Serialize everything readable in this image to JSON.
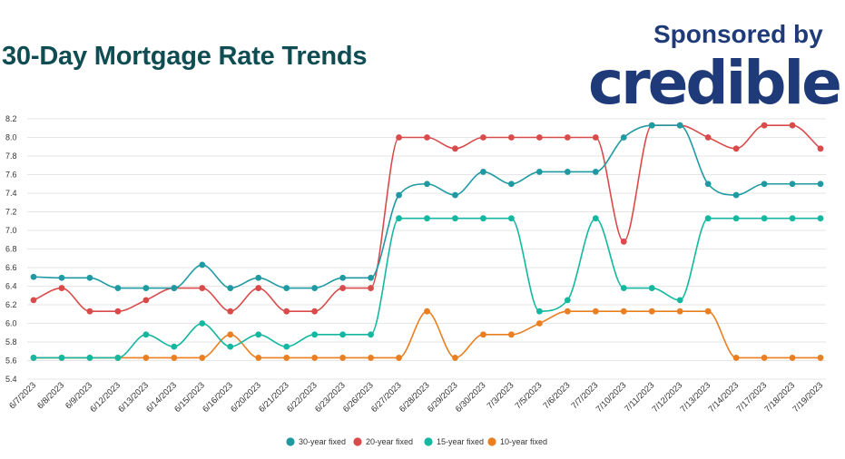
{
  "header": {
    "title": "30-Day Mortgage Rate Trends",
    "sponsor_text": "Sponsored by",
    "sponsor_logo": "credible"
  },
  "colors": {
    "title": "#0f4d52",
    "sponsor": "#1e3a78",
    "grid": "#e6e6e6"
  },
  "chart_data": {
    "type": "line",
    "title": "30-Day Mortgage Rate Trends",
    "ylim": [
      5.4,
      8.2
    ],
    "yticks": [
      "5.4",
      "5.6",
      "5.8",
      "6.0",
      "6.2",
      "6.4",
      "6.6",
      "6.8",
      "7.0",
      "7.2",
      "7.4",
      "7.6",
      "7.8",
      "8.0",
      "8.2"
    ],
    "grid": true,
    "legend_position": "bottom",
    "categories": [
      "6/7/2023",
      "6/8/2023",
      "6/9/2023",
      "6/12/2023",
      "6/13/2023",
      "6/14/2023",
      "6/15/2023",
      "6/16/2023",
      "6/20/2023",
      "6/21/2023",
      "6/22/2023",
      "6/23/2023",
      "6/26/2023",
      "6/27/2023",
      "6/28/2023",
      "6/29/2023",
      "6/30/2023",
      "7/3/2023",
      "7/5/2023",
      "7/6/2023",
      "7/7/2023",
      "7/10/2023",
      "7/11/2023",
      "7/12/2023",
      "7/13/2023",
      "7/14/2023",
      "7/17/2023",
      "7/18/2023",
      "7/19/2023"
    ],
    "series": [
      {
        "name": "30-year fixed",
        "color": "#1f9aa3",
        "values": [
          6.5,
          6.49,
          6.49,
          6.38,
          6.38,
          6.38,
          6.63,
          6.38,
          6.49,
          6.38,
          6.38,
          6.49,
          6.49,
          7.38,
          7.5,
          7.38,
          7.63,
          7.5,
          7.63,
          7.63,
          7.63,
          8.0,
          8.13,
          8.13,
          7.5,
          7.38,
          7.5,
          7.5,
          7.5
        ]
      },
      {
        "name": "20-year fixed",
        "color": "#d94b4b",
        "values": [
          6.25,
          6.38,
          6.13,
          6.13,
          6.25,
          6.38,
          6.38,
          6.13,
          6.38,
          6.13,
          6.13,
          6.38,
          6.38,
          8.0,
          8.0,
          7.88,
          8.0,
          8.0,
          8.0,
          8.0,
          8.0,
          6.88,
          8.13,
          8.13,
          8.0,
          7.88,
          8.13,
          8.13,
          7.88
        ]
      },
      {
        "name": "15-year fixed",
        "color": "#14b8a0",
        "values": [
          5.63,
          5.63,
          5.63,
          5.63,
          5.88,
          5.75,
          6.0,
          5.75,
          5.88,
          5.75,
          5.88,
          5.88,
          5.88,
          7.13,
          7.13,
          7.13,
          7.13,
          7.13,
          6.13,
          6.25,
          7.13,
          6.38,
          6.38,
          6.25,
          7.13,
          7.13,
          7.13,
          7.13,
          7.13
        ]
      },
      {
        "name": "10-year fixed",
        "color": "#ea7f22",
        "values": [
          5.63,
          5.63,
          5.63,
          5.63,
          5.63,
          5.63,
          5.63,
          5.88,
          5.63,
          5.63,
          5.63,
          5.63,
          5.63,
          5.63,
          6.13,
          5.63,
          5.88,
          5.88,
          6.0,
          6.13,
          6.13,
          6.13,
          6.13,
          6.13,
          6.13,
          5.63,
          5.63,
          5.63,
          5.63
        ]
      }
    ]
  }
}
